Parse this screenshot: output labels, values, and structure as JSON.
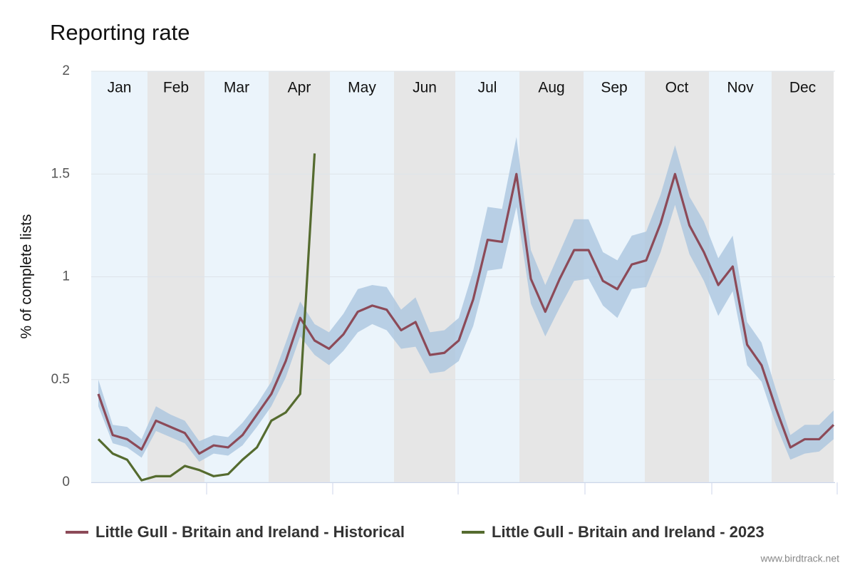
{
  "chart_data": {
    "type": "line",
    "title": "Reporting rate",
    "y_label": "% of complete lists",
    "source": "www.birdtrack.net",
    "months": [
      "Jan",
      "Feb",
      "Mar",
      "Apr",
      "May",
      "Jun",
      "Jul",
      "Aug",
      "Sep",
      "Oct",
      "Nov",
      "Dec"
    ],
    "ylim": [
      0,
      2
    ],
    "yticks": [
      0,
      0.5,
      1,
      1.5,
      2
    ],
    "grid": true,
    "band": {
      "color": "#a7c3de",
      "upper": [
        0.5,
        0.28,
        0.27,
        0.21,
        0.37,
        0.33,
        0.3,
        0.2,
        0.23,
        0.22,
        0.29,
        0.38,
        0.49,
        0.68,
        0.88,
        0.77,
        0.73,
        0.82,
        0.94,
        0.96,
        0.95,
        0.84,
        0.9,
        0.73,
        0.74,
        0.8,
        1.03,
        1.34,
        1.33,
        1.68,
        1.13,
        0.96,
        1.12,
        1.28,
        1.28,
        1.12,
        1.08,
        1.2,
        1.22,
        1.4,
        1.64,
        1.39,
        1.27,
        1.09,
        1.2,
        0.78,
        0.68,
        0.45,
        0.23,
        0.28,
        0.28,
        0.35
      ],
      "lower": [
        0.37,
        0.19,
        0.17,
        0.12,
        0.25,
        0.22,
        0.19,
        0.1,
        0.14,
        0.13,
        0.18,
        0.27,
        0.37,
        0.51,
        0.71,
        0.62,
        0.57,
        0.64,
        0.73,
        0.77,
        0.74,
        0.65,
        0.66,
        0.53,
        0.54,
        0.59,
        0.76,
        1.03,
        1.04,
        1.34,
        0.87,
        0.71,
        0.85,
        0.98,
        0.99,
        0.86,
        0.8,
        0.94,
        0.95,
        1.12,
        1.35,
        1.11,
        0.98,
        0.81,
        0.93,
        0.57,
        0.49,
        0.28,
        0.11,
        0.14,
        0.15,
        0.21
      ]
    },
    "series": [
      {
        "name": "Little Gull - Britain and Ireland - Historical",
        "color": "#8c4a58",
        "values": [
          0.43,
          0.23,
          0.21,
          0.16,
          0.3,
          0.27,
          0.24,
          0.14,
          0.18,
          0.17,
          0.23,
          0.33,
          0.43,
          0.59,
          0.8,
          0.69,
          0.65,
          0.72,
          0.83,
          0.86,
          0.84,
          0.74,
          0.78,
          0.62,
          0.63,
          0.69,
          0.89,
          1.18,
          1.17,
          1.5,
          0.99,
          0.83,
          0.99,
          1.13,
          1.13,
          0.98,
          0.94,
          1.06,
          1.08,
          1.26,
          1.5,
          1.25,
          1.12,
          0.96,
          1.05,
          0.67,
          0.57,
          0.36,
          0.17,
          0.21,
          0.21,
          0.28
        ]
      },
      {
        "name": "Little Gull - Britain and Ireland - 2023",
        "color": "#556b2f",
        "values": [
          0.21,
          0.14,
          0.11,
          0.01,
          0.03,
          0.03,
          0.08,
          0.06,
          0.03,
          0.04,
          0.11,
          0.17,
          0.3,
          0.34,
          0.43,
          1.6,
          null,
          null,
          null,
          null,
          null,
          null,
          null,
          null,
          null,
          null,
          null,
          null,
          null,
          null,
          null,
          null,
          null,
          null,
          null,
          null,
          null,
          null,
          null,
          null,
          null,
          null,
          null,
          null,
          null,
          null,
          null,
          null,
          null,
          null,
          null,
          null
        ]
      }
    ]
  }
}
